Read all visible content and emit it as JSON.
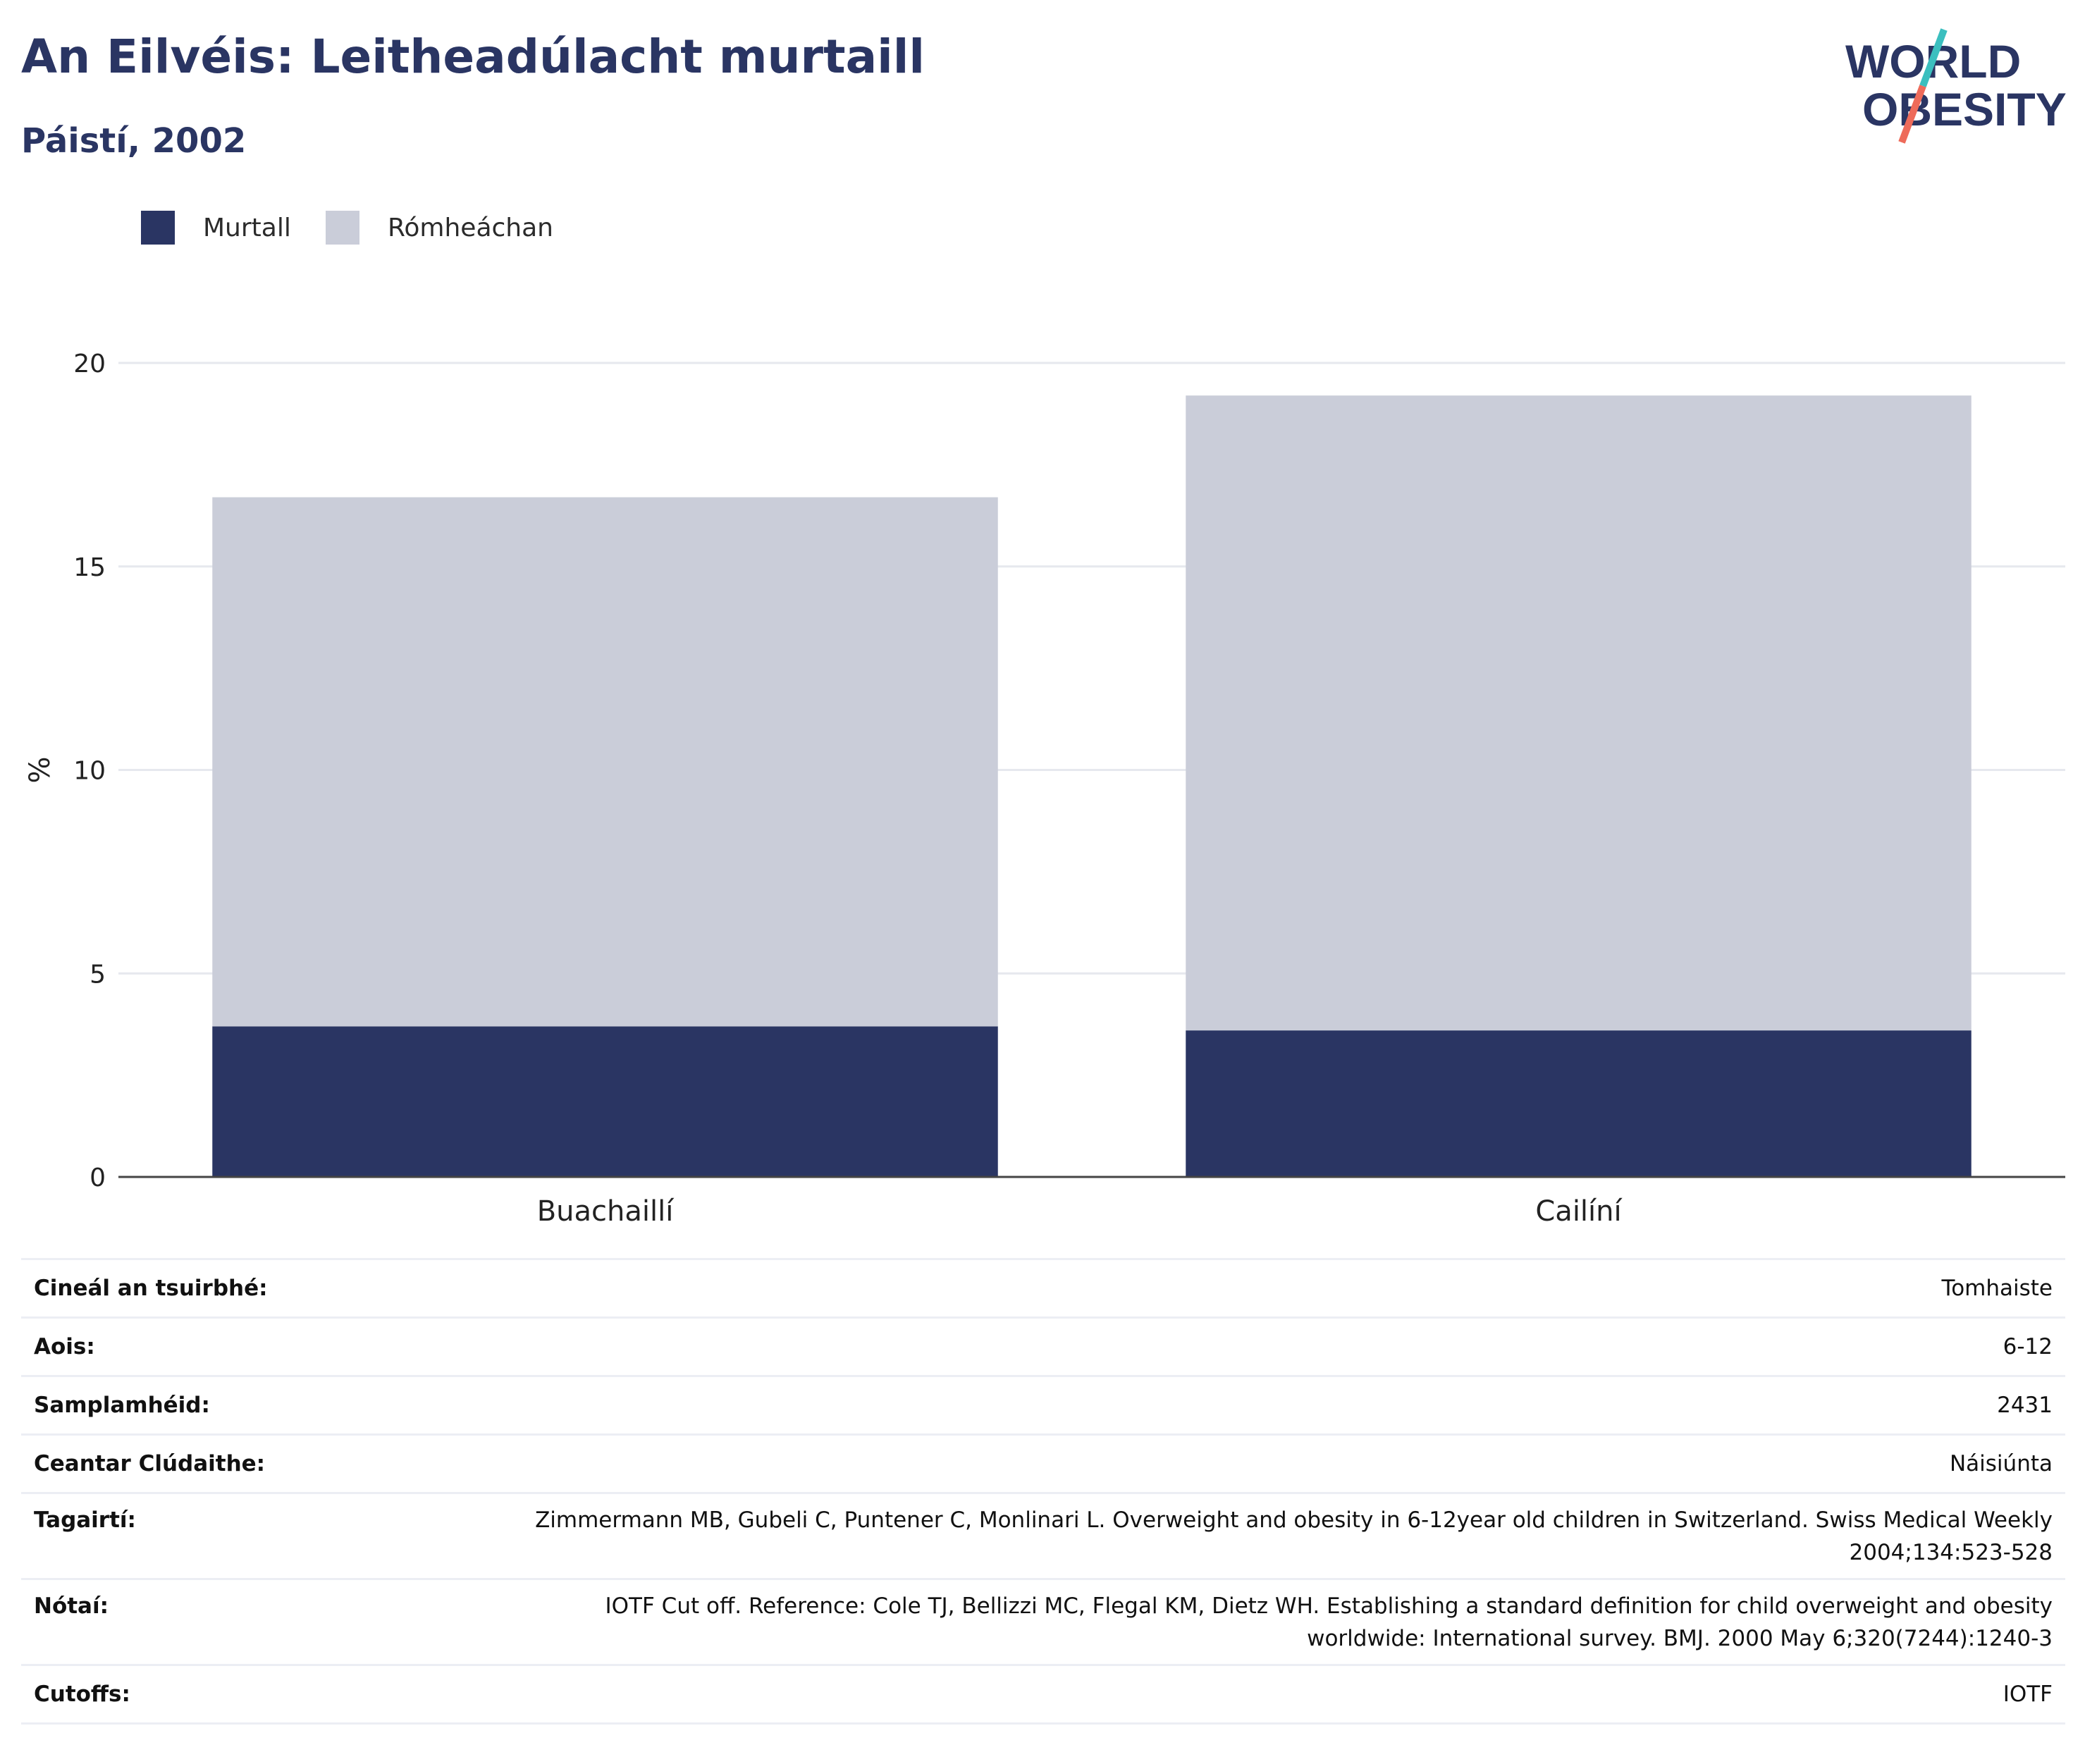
{
  "header": {
    "title": "An Eilvéis: Leitheadúlacht murtaill",
    "subtitle": "Páistí, 2002"
  },
  "logo": {
    "line1": "WORLD",
    "line2": "OBESITY",
    "colors": {
      "text": "#2a3563",
      "slash_top": "#3bbfbf",
      "slash_bottom": "#ee6b5a"
    }
  },
  "colors": {
    "murtall": "#2a3563",
    "romheachan": "#cacdd9",
    "grid": "#e6e8ee",
    "axis": "#444444"
  },
  "chart_data": {
    "type": "bar",
    "stacked": true,
    "categories": [
      "Buachaillí",
      "Cailíní"
    ],
    "series": [
      {
        "name": "Murtall",
        "values": [
          3.7,
          3.6
        ],
        "color": "#2a3563"
      },
      {
        "name": "Rómheáchan",
        "values": [
          13.0,
          15.6
        ],
        "color": "#cacdd9"
      }
    ],
    "ylabel": "%",
    "ylim": [
      0,
      20
    ],
    "yticks": [
      0,
      5,
      10,
      15,
      20
    ],
    "grid": true,
    "legend_position": "top-left"
  },
  "info": [
    {
      "key": "Cineál an tsuirbhé:",
      "value": "Tomhaiste"
    },
    {
      "key": "Aois:",
      "value": "6-12"
    },
    {
      "key": "Samplamhéid:",
      "value": "2431"
    },
    {
      "key": "Ceantar Clúdaithe:",
      "value": "Náisiúnta"
    },
    {
      "key": "Tagairtí:",
      "value": "Zimmermann MB, Gubeli C, Puntener C, Monlinari L. Overweight and obesity in 6-12year old children in Switzerland. Swiss Medical Weekly 2004;134:523-528"
    },
    {
      "key": "Nótaí:",
      "value": "IOTF Cut off. Reference: Cole TJ, Bellizzi MC, Flegal KM, Dietz WH. Establishing a standard definition for child overweight and obesity worldwide: International survey. BMJ. 2000 May 6;320(7244):1240-3"
    },
    {
      "key": "Cutoffs:",
      "value": "IOTF"
    }
  ]
}
